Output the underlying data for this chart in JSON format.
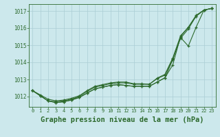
{
  "background_color": "#cce8ec",
  "grid_color": "#aacdd4",
  "line_color": "#2d6a2d",
  "xlabel": "Graphe pression niveau de la mer (hPa)",
  "xlabel_fontsize": 7.5,
  "ylabel_ticks": [
    1012,
    1013,
    1014,
    1015,
    1016,
    1017
  ],
  "xlim": [
    -0.5,
    23.5
  ],
  "ylim": [
    1011.4,
    1017.4
  ],
  "xticks": [
    0,
    1,
    2,
    3,
    4,
    5,
    6,
    7,
    8,
    9,
    10,
    11,
    12,
    13,
    14,
    15,
    16,
    17,
    18,
    19,
    20,
    21,
    22,
    23
  ],
  "series": [
    [
      1012.35,
      1012.05,
      1011.75,
      1011.65,
      1011.7,
      1011.8,
      1011.95,
      1012.2,
      1012.45,
      1012.55,
      1012.65,
      1012.7,
      1012.65,
      1012.6,
      1012.6,
      1012.6,
      1012.85,
      1013.1,
      1013.85,
      1015.5,
      1016.05,
      1016.7,
      1017.05,
      1017.15
    ],
    [
      1012.35,
      1012.05,
      1011.75,
      1011.65,
      1011.7,
      1011.8,
      1011.95,
      1012.2,
      1012.45,
      1012.55,
      1012.65,
      1012.7,
      1012.65,
      1012.6,
      1012.6,
      1012.6,
      1012.85,
      1013.1,
      1014.15,
      1015.45,
      1014.95,
      1016.05,
      1017.05,
      1017.15
    ],
    [
      1012.35,
      1012.05,
      1011.75,
      1011.7,
      1011.75,
      1011.85,
      1012.0,
      1012.3,
      1012.55,
      1012.65,
      1012.75,
      1012.8,
      1012.8,
      1012.72,
      1012.72,
      1012.72,
      1013.05,
      1013.25,
      1014.2,
      1015.4,
      1015.95,
      1016.7,
      1017.05,
      1017.15
    ],
    [
      1012.35,
      1012.1,
      1011.85,
      1011.75,
      1011.8,
      1011.9,
      1012.05,
      1012.35,
      1012.6,
      1012.7,
      1012.8,
      1012.85,
      1012.85,
      1012.75,
      1012.75,
      1012.72,
      1013.08,
      1013.3,
      1014.25,
      1015.55,
      1016.05,
      1016.75,
      1017.05,
      1017.15
    ]
  ]
}
